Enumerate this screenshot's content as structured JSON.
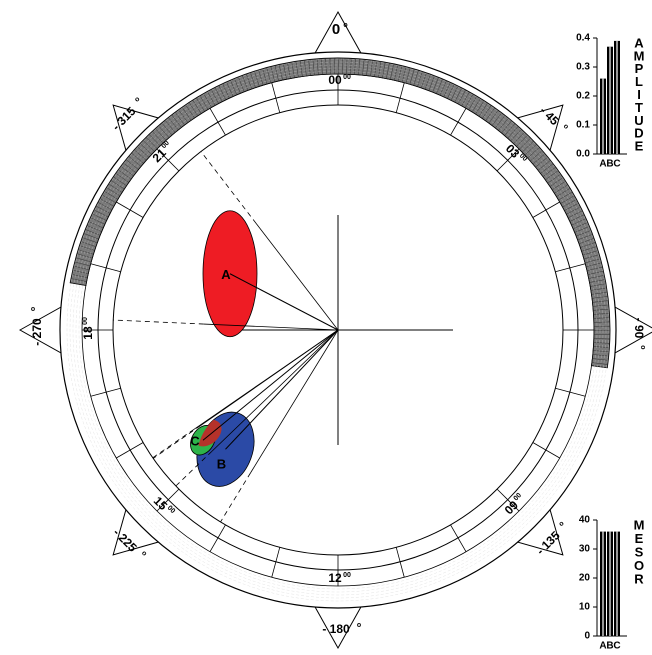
{
  "chart_data": [
    {
      "type": "cosinor",
      "clock_labels": [
        "00",
        "03",
        "09",
        "12",
        "15",
        "18",
        "21"
      ],
      "clock_superscript": "00",
      "phase_labels": [
        "0",
        "- 45",
        "- 90",
        "- 135",
        "- 180",
        "- 225",
        "- 270",
        "- 315"
      ],
      "degree_symbol": "o",
      "series": [
        {
          "name": "A",
          "acrophase_deg": -289,
          "amplitude_rel": 0.58,
          "color": "#ee1c24",
          "ellipse_center_rel": [
            -0.48,
            -0.25
          ],
          "ellipse_axes_rel": [
            0.12,
            0.28
          ],
          "ellipse_angle": 0
        },
        {
          "name": "B",
          "acrophase_deg": -215,
          "amplitude_rel": 0.59,
          "color": "#2b4aa6",
          "ellipse_center_rel": [
            -0.5,
            0.53
          ],
          "ellipse_axes_rel": [
            0.12,
            0.17
          ],
          "ellipse_angle": 20
        },
        {
          "name": "C",
          "acrophase_deg": -217,
          "amplitude_rel": 0.64,
          "color": "#2eb34a",
          "ellipse_center_rel": [
            -0.6,
            0.49
          ],
          "ellipse_axes_rel": [
            0.05,
            0.07
          ],
          "ellipse_angle": 30
        }
      ],
      "overlap_color": "#b5322a"
    },
    {
      "type": "bar",
      "title": "AMPLITUDE",
      "categories": [
        "A",
        "B",
        "C"
      ],
      "values": [
        0.26,
        0.37,
        0.39
      ],
      "ylim": [
        0,
        0.4
      ],
      "yticks": [
        "0.0",
        "0.1",
        "0.2",
        "0.3",
        "0.4"
      ]
    },
    {
      "type": "bar",
      "title": "MESOR",
      "categories": [
        "A",
        "B",
        "C"
      ],
      "values": [
        36,
        36,
        36
      ],
      "ylim": [
        0,
        40
      ],
      "yticks": [
        "0",
        "10",
        "20",
        "30",
        "40"
      ]
    }
  ]
}
